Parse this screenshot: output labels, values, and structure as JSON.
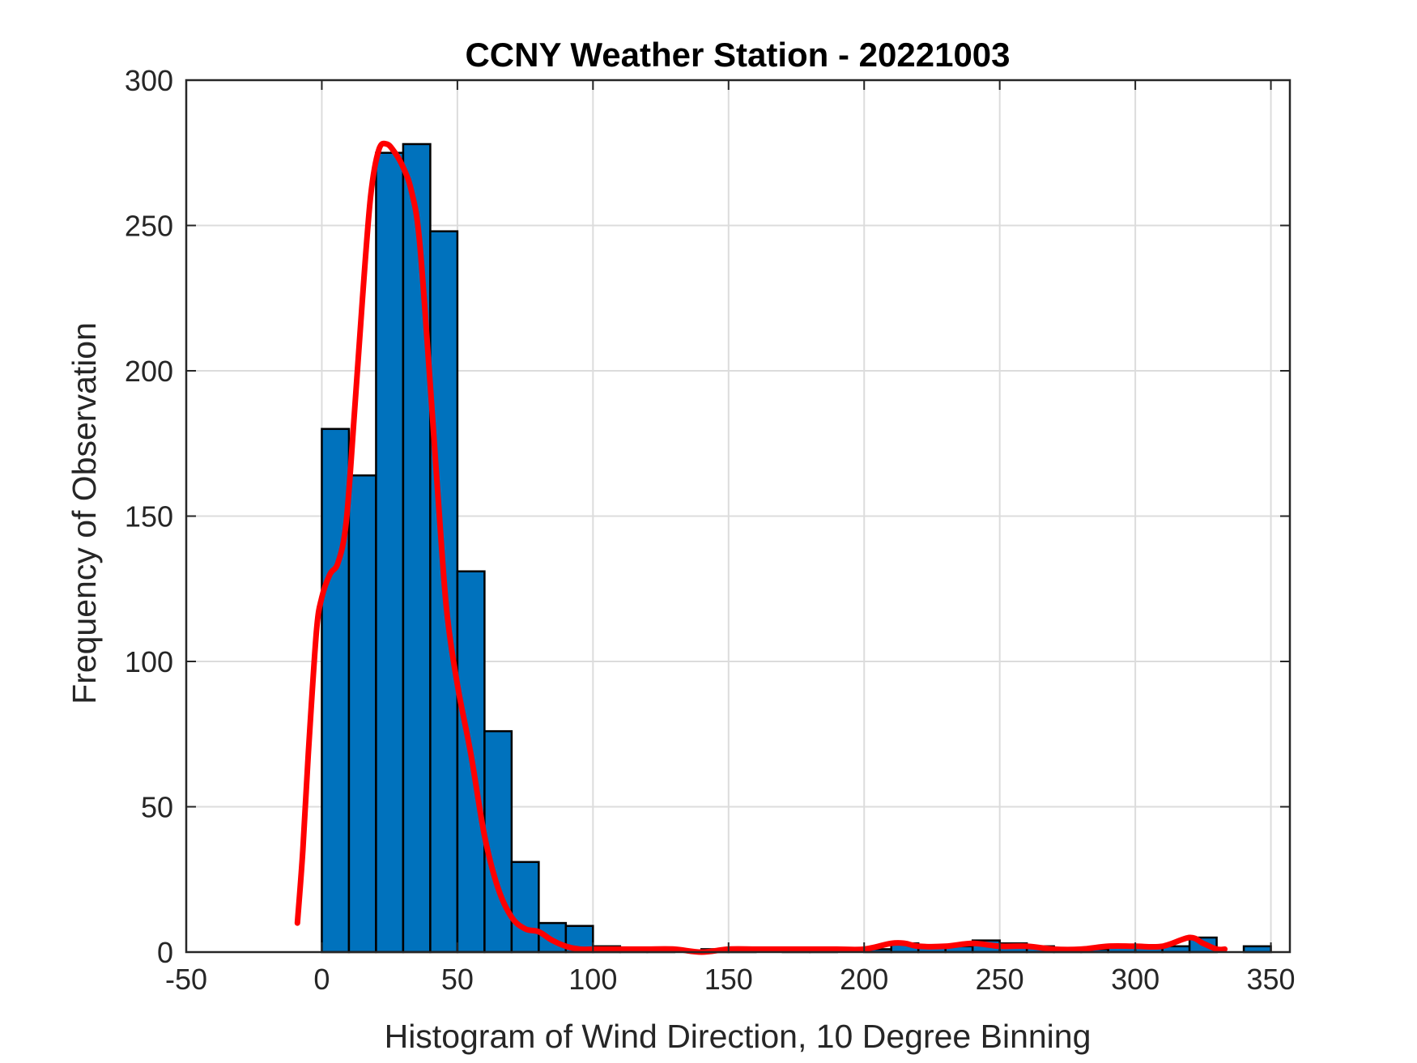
{
  "colors": {
    "bar_fill": "#0072BD",
    "bar_edge": "#000000",
    "fit_line": "#FF0000",
    "grid": "#DCDCDC",
    "axis": "#262626"
  },
  "chart_data": {
    "type": "bar",
    "title": "CCNY Weather Station - 20221003",
    "xlabel": "Histogram of Wind Direction, 10 Degree Binning",
    "ylabel": "Frequency of Observation",
    "xlim": [
      -50,
      357
    ],
    "ylim": [
      0,
      300
    ],
    "xticks": [
      -50,
      0,
      50,
      100,
      150,
      200,
      250,
      300,
      350
    ],
    "yticks": [
      0,
      50,
      100,
      150,
      200,
      250,
      300
    ],
    "grid": true,
    "bin_width": 10,
    "series": [
      {
        "type": "histogram",
        "bin_edges": [
          0,
          10,
          20,
          30,
          40,
          50,
          60,
          70,
          80,
          90,
          100,
          110,
          120,
          130,
          140,
          150,
          160,
          170,
          180,
          190,
          200,
          210,
          220,
          230,
          240,
          250,
          260,
          270,
          280,
          290,
          300,
          310,
          320,
          330,
          340,
          350
        ],
        "values": [
          180,
          164,
          275,
          278,
          248,
          131,
          76,
          31,
          10,
          9,
          2,
          1,
          1,
          0,
          1,
          1,
          0,
          1,
          1,
          0,
          1,
          3,
          2,
          2,
          4,
          3,
          2,
          1,
          1,
          2,
          2,
          2,
          5,
          0,
          2
        ]
      },
      {
        "type": "line",
        "x": [
          -9,
          -7,
          -5,
          -2,
          0,
          3,
          6,
          9,
          12,
          15,
          18,
          21,
          24,
          27,
          30,
          33,
          36,
          40,
          43,
          46,
          50,
          55,
          60,
          65,
          70,
          75,
          80,
          85,
          90,
          95,
          100,
          105,
          110,
          120,
          130,
          140,
          150,
          160,
          170,
          180,
          190,
          200,
          210,
          215,
          220,
          230,
          240,
          250,
          260,
          270,
          280,
          290,
          300,
          310,
          320,
          325,
          330,
          333
        ],
        "y": [
          10,
          35,
          68,
          110,
          122,
          130,
          134,
          148,
          185,
          225,
          260,
          276,
          278,
          275,
          270,
          262,
          245,
          195,
          155,
          118,
          92,
          68,
          40,
          22,
          12,
          8,
          7,
          4,
          2,
          1,
          1,
          1,
          1,
          1,
          1,
          0,
          1,
          1,
          1,
          1,
          1,
          1,
          3,
          3,
          2,
          2,
          3,
          2,
          2,
          1,
          1,
          2,
          2,
          2,
          5,
          3,
          1,
          1
        ]
      }
    ]
  }
}
